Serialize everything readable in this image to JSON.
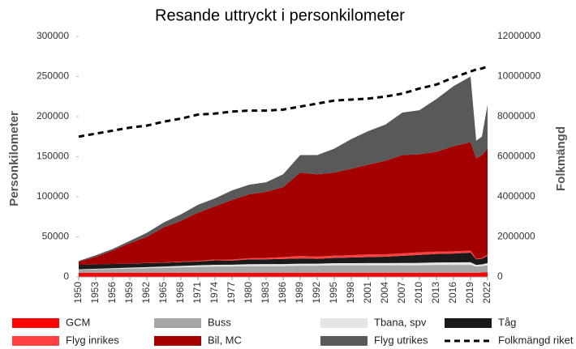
{
  "chart_data": {
    "type": "stacked_area_line",
    "title": "Resande uttryckt i personkilometer",
    "y_label": "Personkilometer",
    "y2_label": "Folkmängd",
    "x": [
      1950,
      1953,
      1956,
      1959,
      1962,
      1965,
      1968,
      1971,
      1974,
      1977,
      1980,
      1983,
      1986,
      1989,
      1992,
      1995,
      1998,
      2001,
      2004,
      2007,
      2010,
      2013,
      2016,
      2019,
      2020,
      2021,
      2022
    ],
    "xlim": [
      1950,
      2022
    ],
    "xticks": [
      1950,
      1953,
      1956,
      1959,
      1962,
      1965,
      1968,
      1971,
      1974,
      1977,
      1980,
      1983,
      1986,
      1989,
      1992,
      1995,
      1998,
      2001,
      2004,
      2007,
      2010,
      2013,
      2016,
      2019,
      2022
    ],
    "ylim": [
      0,
      300000
    ],
    "yticks": [
      0,
      50000,
      100000,
      150000,
      200000,
      250000,
      300000
    ],
    "y2lim": [
      0,
      12000000
    ],
    "y2ticks": [
      0,
      2000000,
      4000000,
      6000000,
      8000000,
      10000000,
      12000000
    ],
    "series": [
      {
        "name": "GCM",
        "color": "#ff0000",
        "values": [
          5000,
          5000,
          5000,
          5000,
          5000,
          5000,
          5000,
          5000,
          5000,
          5000,
          5000,
          5000,
          5000,
          5000,
          5000,
          5000,
          5000,
          5000,
          5000,
          5000,
          5000,
          5000,
          5000,
          5000,
          5000,
          5500,
          5500
        ]
      },
      {
        "name": "Buss",
        "color": "#a6a6a6",
        "values": [
          4000,
          4500,
          5000,
          5500,
          6000,
          6500,
          7000,
          7500,
          8000,
          8000,
          8500,
          8500,
          8500,
          9000,
          9000,
          9500,
          9500,
          9500,
          9500,
          9500,
          9500,
          10000,
          10000,
          10000,
          8000,
          8000,
          9000
        ]
      },
      {
        "name": "Tbana, spv",
        "color": "#e4e4e4",
        "values": [
          500,
          700,
          900,
          1100,
          1300,
          1500,
          1800,
          2000,
          2200,
          2300,
          2400,
          2500,
          2500,
          2600,
          2600,
          2700,
          2700,
          2800,
          2800,
          2900,
          3000,
          3100,
          3200,
          3300,
          2000,
          2200,
          2800
        ]
      },
      {
        "name": "Tåg",
        "color": "#1a1a1a",
        "values": [
          5500,
          5300,
          5200,
          5000,
          5000,
          4800,
          4800,
          4800,
          5500,
          5200,
          6000,
          6000,
          6500,
          6500,
          6000,
          6500,
          7000,
          7500,
          8000,
          9000,
          10000,
          10500,
          11000,
          12000,
          7000,
          7000,
          9000
        ]
      },
      {
        "name": "Flyg inrikes",
        "color": "#ff4040",
        "values": [
          0,
          0,
          0,
          100,
          200,
          400,
          600,
          800,
          1000,
          1200,
          1500,
          1800,
          2200,
          3000,
          2800,
          2800,
          3000,
          3300,
          3000,
          3000,
          3200,
          3000,
          2800,
          2500,
          700,
          900,
          1500
        ]
      },
      {
        "name": "Bil, MC",
        "color": "#a50000",
        "values": [
          4000,
          9500,
          16900,
          25300,
          32500,
          43800,
          50800,
          59900,
          66300,
          74300,
          79600,
          82200,
          87300,
          103900,
          102600,
          103500,
          107800,
          111900,
          116700,
          122600,
          122300,
          124400,
          131000,
          135200,
          125300,
          128400,
          132200
        ]
      },
      {
        "name": "Flyg utrikes",
        "color": "#595959",
        "values": [
          1000,
          2000,
          2000,
          3000,
          5000,
          6000,
          8000,
          10000,
          10000,
          12000,
          12000,
          12000,
          16000,
          22000,
          24000,
          30000,
          37000,
          42000,
          45000,
          53000,
          55000,
          66000,
          75000,
          82000,
          22000,
          23000,
          55000
        ]
      },
      {
        "name": "Folkmängd riket",
        "color": "#000000",
        "axis": "y2",
        "dashed": true,
        "values": [
          7000000,
          7150000,
          7300000,
          7450000,
          7550000,
          7750000,
          7900000,
          8100000,
          8150000,
          8250000,
          8300000,
          8300000,
          8350000,
          8500000,
          8650000,
          8800000,
          8850000,
          8900000,
          9000000,
          9150000,
          9400000,
          9600000,
          9950000,
          10250000,
          10350000,
          10400000,
          10500000
        ]
      }
    ]
  }
}
